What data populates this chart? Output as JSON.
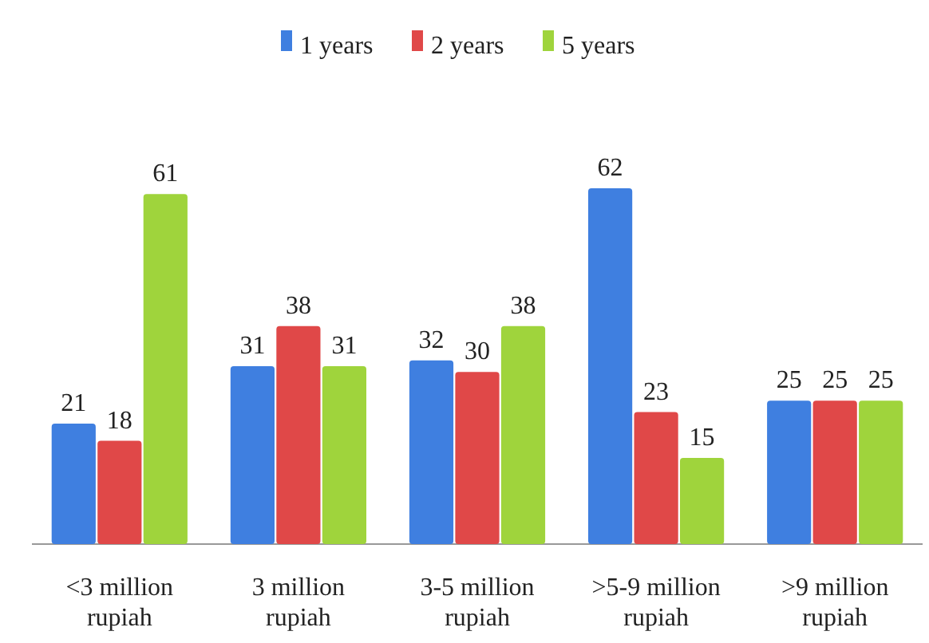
{
  "chart_data": {
    "type": "bar",
    "categories": [
      "<3 million rupiah",
      "3 million rupiah",
      "3-5 million rupiah",
      ">5-9 million rupiah",
      ">9 million rupiah"
    ],
    "series": [
      {
        "name": "1 years",
        "color": "#3f7fe0",
        "values": [
          21,
          31,
          32,
          62,
          25
        ]
      },
      {
        "name": "2 years",
        "color": "#e04848",
        "values": [
          18,
          38,
          30,
          23,
          25
        ]
      },
      {
        "name": "5 years",
        "color": "#9fd43c",
        "values": [
          61,
          31,
          38,
          15,
          25
        ]
      }
    ],
    "data_labels": true,
    "legend": "top"
  }
}
